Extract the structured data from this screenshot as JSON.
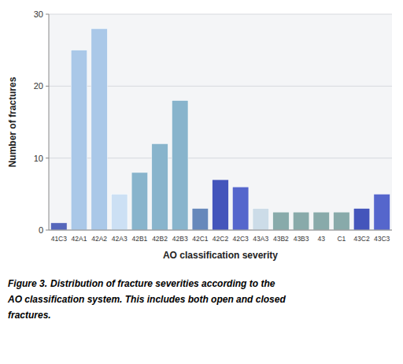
{
  "chart_data": {
    "type": "bar",
    "categories": [
      "41C3",
      "42A1",
      "42A2",
      "42A3",
      "42B1",
      "42B2",
      "42B3",
      "42C1",
      "42C2",
      "42C3",
      "43A3",
      "43B2",
      "43B3",
      "43",
      "C1",
      "43C2",
      "43C3"
    ],
    "values": [
      1,
      25,
      28,
      5,
      8,
      12,
      18,
      3,
      7,
      6,
      3,
      2.5,
      2.5,
      2.5,
      2.5,
      3,
      5
    ],
    "colors": [
      "#5566bb",
      "#aac8e8",
      "#aac8e8",
      "#cce0f4",
      "#88b4cc",
      "#88b4cc",
      "#88b4cc",
      "#6688bb",
      "#4455bb",
      "#5566cc",
      "#ccdce8",
      "#88aaaa",
      "#88aaaa",
      "#88aaaa",
      "#88aaaa",
      "#4455bb",
      "#5566cc"
    ],
    "xlabel": "AO classification severity",
    "ylabel": "Number of fractures",
    "ylim": [
      0,
      30
    ],
    "yticks": [
      0,
      10,
      20,
      30
    ],
    "grid": true,
    "annotations": [
      "Figure 3.",
      "Distribution of fracture severities according to the",
      "AO classification system. This includes both open and closed",
      "fractures."
    ]
  }
}
